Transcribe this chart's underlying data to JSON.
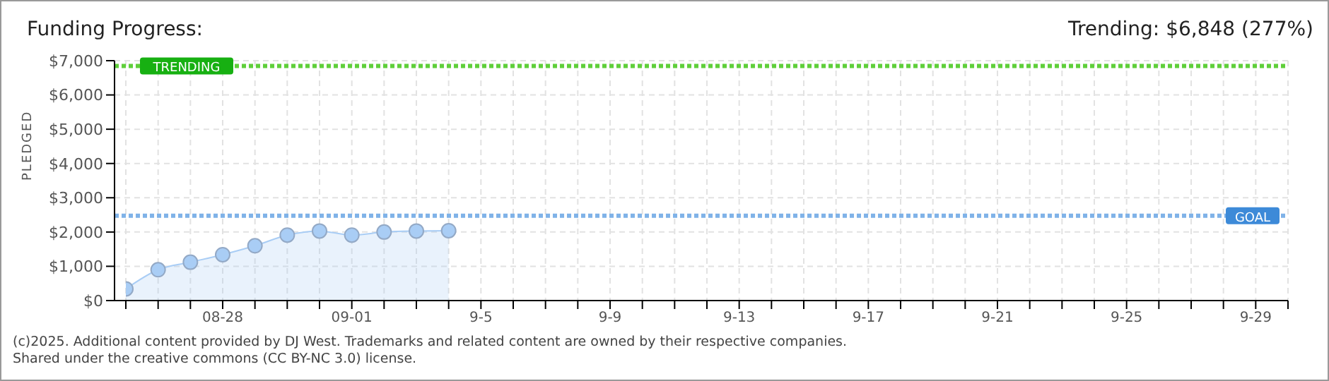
{
  "chart_data": {
    "type": "area",
    "title": "Funding Progress:",
    "ylabel": "PLEDGED",
    "x": [
      "--08-25",
      "--08-26",
      "--08-27",
      "--08-28",
      "--08-29",
      "--08-30",
      "--08-31",
      "--09-01",
      "--09-02",
      "--09-03",
      "--09-04"
    ],
    "series": [
      {
        "color": "#a9cdf5",
        "values": [
          340,
          900,
          1120,
          1340,
          1600,
          1910,
          2030,
          1910,
          2000,
          2030,
          2040
        ]
      }
    ],
    "marker": "circle",
    "grid": true,
    "legend": false,
    "xlim": [
      "--08-25",
      "--09-30"
    ],
    "xticks": [
      {
        "value": "--08-25",
        "label": null
      },
      {
        "value": "--08-26",
        "label": null
      },
      {
        "value": "--08-27",
        "label": null
      },
      {
        "value": "--08-28",
        "label": "08-28"
      },
      {
        "value": "--08-29",
        "label": null
      },
      {
        "value": "--08-30",
        "label": null
      },
      {
        "value": "--08-31",
        "label": null
      },
      {
        "value": "--09-01",
        "label": "09-01"
      },
      {
        "value": "--09-02",
        "label": null
      },
      {
        "value": "--09-03",
        "label": null
      },
      {
        "value": "--09-04",
        "label": null
      },
      {
        "value": "--09-05",
        "label": "9-5"
      },
      {
        "value": "--09-06",
        "label": null
      },
      {
        "value": "--09-07",
        "label": null
      },
      {
        "value": "--09-08",
        "label": null
      },
      {
        "value": "--09-09",
        "label": "9-9"
      },
      {
        "value": "--09-10",
        "label": null
      },
      {
        "value": "--09-11",
        "label": null
      },
      {
        "value": "--09-12",
        "label": null
      },
      {
        "value": "--09-13",
        "label": "9-13"
      },
      {
        "value": "--09-14",
        "label": null
      },
      {
        "value": "--09-15",
        "label": null
      },
      {
        "value": "--09-16",
        "label": null
      },
      {
        "value": "--09-17",
        "label": "9-17"
      },
      {
        "value": "--09-18",
        "label": null
      },
      {
        "value": "--09-19",
        "label": null
      },
      {
        "value": "--09-20",
        "label": null
      },
      {
        "value": "--09-21",
        "label": "9-21"
      },
      {
        "value": "--09-22",
        "label": null
      },
      {
        "value": "--09-23",
        "label": null
      },
      {
        "value": "--09-24",
        "label": null
      },
      {
        "value": "--09-25",
        "label": "9-25"
      },
      {
        "value": "--09-26",
        "label": null
      },
      {
        "value": "--09-27",
        "label": null
      },
      {
        "value": "--09-28",
        "label": null
      },
      {
        "value": "--09-29",
        "label": "9-29"
      },
      {
        "value": "--09-30",
        "label": null
      }
    ],
    "ylim": [
      0,
      7000
    ],
    "yticks": [
      {
        "value": 0,
        "label": "$0"
      },
      {
        "value": 1000,
        "label": "$1,000"
      },
      {
        "value": 2000,
        "label": "$2,000"
      },
      {
        "value": 3000,
        "label": "$3,000"
      },
      {
        "value": 4000,
        "label": "$4,000"
      },
      {
        "value": 5000,
        "label": "$5,000"
      },
      {
        "value": 6000,
        "label": "$6,000"
      },
      {
        "value": 7000,
        "label": "$7,000"
      }
    ],
    "ref_lines": [
      {
        "axis": "y",
        "value": 6848,
        "label": "TRENDING",
        "color": "#5fcf3a",
        "line_style": "dotted"
      },
      {
        "axis": "y",
        "value": 2475,
        "label": "GOAL",
        "color": "#7fb2e8",
        "line_style": "dotted"
      }
    ],
    "annotations": [
      "Trending: $6,848 (277%)",
      "(c)2025. Additional content provided by DJ West. Trademarks and related content are owned by their respective companies.",
      "Shared under the creative commons (CC BY-NC 3.0) license."
    ]
  }
}
